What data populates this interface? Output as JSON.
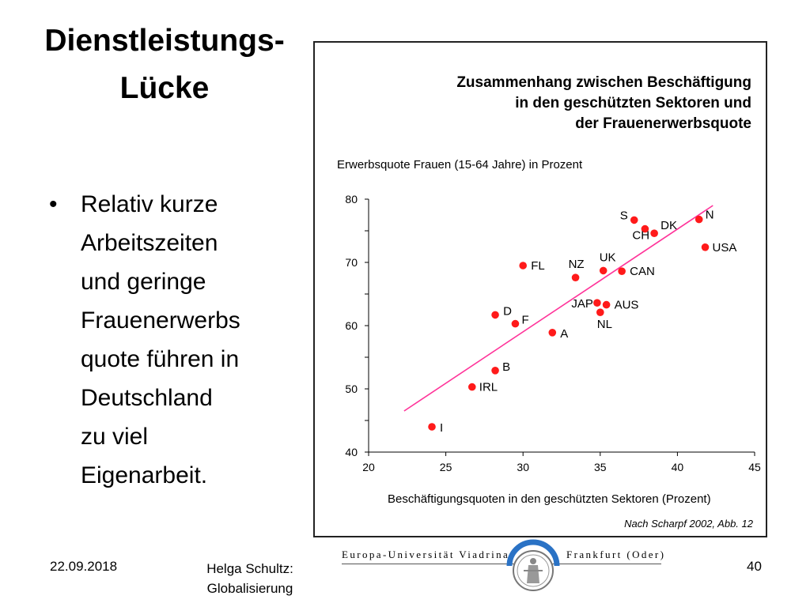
{
  "slide": {
    "title_line1": "Dienstleistungs-",
    "title_line2": "Lücke",
    "bullet_marker": "•",
    "bullet_lines": [
      "Relativ kurze",
      "Arbeitszeiten",
      "und geringe",
      "Frauenerwerbs",
      "quote führen in",
      "Deutschland",
      "zu viel",
      "Eigenarbeit."
    ]
  },
  "footer": {
    "date": "22.09.2018",
    "author_line1": "Helga Schultz:",
    "author_line2": "Globalisierung",
    "page_number": "40"
  },
  "logo": {
    "left_text": "Europa-Universität Viadrina",
    "right_text": "Frankfurt (Oder)",
    "seal_icon": "university-seal-icon"
  },
  "chart_data": {
    "type": "scatter",
    "title_lines": [
      "Zusammenhang zwischen Beschäftigung",
      "in den geschützten Sektoren und",
      "der Frauenerwerbsquote"
    ],
    "ylabel": "Erwerbsquote Frauen (15-64 Jahre) in Prozent",
    "xlabel": "Beschäftigungsquoten in den geschützten Sektoren (Prozent)",
    "source": "Nach Scharpf 2002, Abb. 12",
    "xlim": [
      20,
      45
    ],
    "ylim": [
      40,
      80
    ],
    "x_ticks": [
      20,
      25,
      30,
      35,
      40,
      45
    ],
    "y_ticks": [
      40,
      50,
      60,
      70,
      80
    ],
    "point_color": "#ff1a1a",
    "trend_color": "#ff3399",
    "trend_line": [
      [
        22.3,
        46.5
      ],
      [
        42.3,
        79
      ]
    ],
    "points": [
      {
        "label": "S",
        "x": 37.2,
        "y": 76.7
      },
      {
        "label": "CH",
        "x": 37.9,
        "y": 75.3
      },
      {
        "label": "DK",
        "x": 38.5,
        "y": 74.6
      },
      {
        "label": "N",
        "x": 41.4,
        "y": 76.8
      },
      {
        "label": "USA",
        "x": 41.8,
        "y": 72.4
      },
      {
        "label": "FL",
        "x": 30.0,
        "y": 69.5
      },
      {
        "label": "NZ",
        "x": 33.4,
        "y": 67.6
      },
      {
        "label": "UK",
        "x": 35.2,
        "y": 68.7
      },
      {
        "label": "CAN",
        "x": 36.4,
        "y": 68.6
      },
      {
        "label": "JAP",
        "x": 34.8,
        "y": 63.6
      },
      {
        "label": "AUS",
        "x": 35.4,
        "y": 63.3
      },
      {
        "label": "NL",
        "x": 35.0,
        "y": 62.1
      },
      {
        "label": "D",
        "x": 28.2,
        "y": 61.7
      },
      {
        "label": "F",
        "x": 29.5,
        "y": 60.3
      },
      {
        "label": "A",
        "x": 31.9,
        "y": 58.9
      },
      {
        "label": "B",
        "x": 28.2,
        "y": 52.9
      },
      {
        "label": "IRL",
        "x": 26.7,
        "y": 50.3
      },
      {
        "label": "I",
        "x": 24.1,
        "y": 44.0
      }
    ]
  }
}
